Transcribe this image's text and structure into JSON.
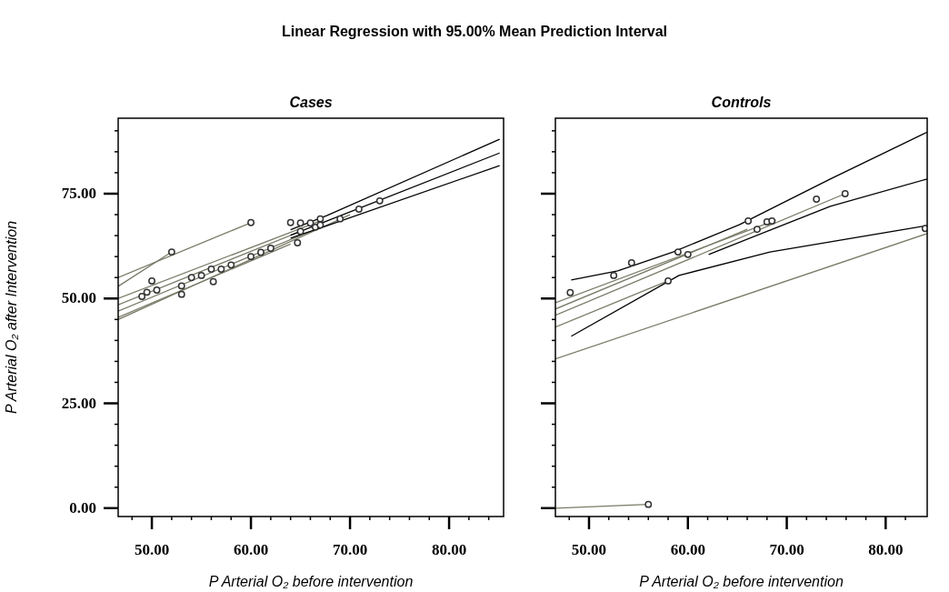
{
  "chart_data": [
    {
      "type": "line",
      "title": "Linear Regression with 95.00% Mean Prediction Interval",
      "subtitle": "Cases",
      "xlabel": "P Arterial O₂ before intervention",
      "ylabel": "P Arterial O₂ after Intervention",
      "xlim": [
        46.6,
        85.5
      ],
      "ylim": [
        -2,
        93
      ],
      "xticks": [
        {
          "value": 48,
          "label": null
        },
        {
          "value": 50,
          "label": "50.00"
        },
        {
          "value": 52,
          "label": null
        },
        {
          "value": 54,
          "label": null
        },
        {
          "value": 56,
          "label": null
        },
        {
          "value": 58,
          "label": null
        },
        {
          "value": 60,
          "label": "60.00"
        },
        {
          "value": 62,
          "label": null
        },
        {
          "value": 64,
          "label": null
        },
        {
          "value": 66,
          "label": null
        },
        {
          "value": 68,
          "label": null
        },
        {
          "value": 70,
          "label": "70.00"
        },
        {
          "value": 72,
          "label": null
        },
        {
          "value": 74,
          "label": null
        },
        {
          "value": 76,
          "label": null
        },
        {
          "value": 78,
          "label": null
        },
        {
          "value": 80,
          "label": "80.00"
        },
        {
          "value": 82,
          "label": null
        },
        {
          "value": 84,
          "label": null
        }
      ],
      "yticks": [
        {
          "value": 0,
          "label": "0.00"
        },
        {
          "value": 5,
          "label": null
        },
        {
          "value": 10,
          "label": null
        },
        {
          "value": 15,
          "label": null
        },
        {
          "value": 20,
          "label": null
        },
        {
          "value": 25,
          "label": "25.00"
        },
        {
          "value": 30,
          "label": null
        },
        {
          "value": 35,
          "label": null
        },
        {
          "value": 40,
          "label": null
        },
        {
          "value": 45,
          "label": null
        },
        {
          "value": 50,
          "label": "50.00"
        },
        {
          "value": 55,
          "label": null
        },
        {
          "value": 60,
          "label": null
        },
        {
          "value": 65,
          "label": null
        },
        {
          "value": 70,
          "label": null
        },
        {
          "value": 75,
          "label": "75.00"
        },
        {
          "value": 80,
          "label": null
        },
        {
          "value": 85,
          "label": null
        },
        {
          "value": 90,
          "label": null
        }
      ],
      "marker": "none",
      "series": [
        {
          "color": "#7a7a68",
          "x": [
            46.6,
            60
          ],
          "values": [
            55,
            68.1
          ]
        },
        {
          "color": "#7a7a68",
          "x": [
            46.6,
            52
          ],
          "values": [
            52.9,
            61.1
          ]
        },
        {
          "color": "#7a7a68",
          "x": [
            46.6,
            67
          ],
          "values": [
            50,
            68.5
          ]
        },
        {
          "color": "#7a7a68",
          "x": [
            46.6,
            65
          ],
          "values": [
            48.5,
            66
          ]
        },
        {
          "color": "#7a7a68",
          "x": [
            46.6,
            66
          ],
          "values": [
            47,
            66
          ]
        },
        {
          "color": "#7a7a68",
          "x": [
            46.6,
            64
          ],
          "values": [
            45.5,
            63
          ]
        },
        {
          "color": "#7a7a68",
          "x": [
            46.6,
            70
          ],
          "values": [
            45,
            70
          ]
        },
        {
          "color": "#000000",
          "x": [
            64,
            67.7,
            85.1
          ],
          "values": [
            66.4,
            69.8,
            88
          ]
        },
        {
          "color": "#000000",
          "x": [
            64,
            67.7,
            85.1
          ],
          "values": [
            65.1,
            68.5,
            84.7
          ]
        },
        {
          "color": "#000000",
          "x": [
            64,
            67.7,
            85.1
          ],
          "values": [
            64.4,
            67.4,
            81.7
          ]
        },
        {
          "type": "scatter",
          "color": "#333333",
          "marker": "circle",
          "x": [
            49,
            49.5,
            50,
            50.5,
            52,
            53,
            53,
            54,
            55,
            56.2,
            56,
            57,
            58,
            60,
            60,
            61,
            62,
            64,
            64.7,
            65,
            65,
            66,
            66.5,
            67,
            67,
            69,
            70.9,
            73
          ],
          "values": [
            50.5,
            51.5,
            54.2,
            52,
            61.1,
            51,
            53,
            55,
            55.5,
            54,
            57,
            57,
            58,
            68.1,
            60,
            61,
            62,
            68.1,
            63.3,
            66,
            68,
            68,
            67,
            69,
            67.5,
            69,
            71.3,
            73.3
          ]
        }
      ]
    },
    {
      "type": "line",
      "subtitle": "Controls",
      "xlabel": "P Arterial O₂ before intervention",
      "xlim": [
        46.6,
        84.2
      ],
      "ylim": [
        -2,
        93
      ],
      "tick_labels": "x",
      "xticks": [
        {
          "value": 48,
          "label": null
        },
        {
          "value": 50,
          "label": "50.00"
        },
        {
          "value": 52,
          "label": null
        },
        {
          "value": 54,
          "label": null
        },
        {
          "value": 56,
          "label": null
        },
        {
          "value": 58,
          "label": null
        },
        {
          "value": 60,
          "label": "60.00"
        },
        {
          "value": 62,
          "label": null
        },
        {
          "value": 64,
          "label": null
        },
        {
          "value": 66,
          "label": null
        },
        {
          "value": 68,
          "label": null
        },
        {
          "value": 70,
          "label": "70.00"
        },
        {
          "value": 72,
          "label": null
        },
        {
          "value": 74,
          "label": null
        },
        {
          "value": 76,
          "label": null
        },
        {
          "value": 78,
          "label": null
        },
        {
          "value": 80,
          "label": "80.00"
        },
        {
          "value": 82,
          "label": null
        }
      ],
      "yticks": [
        0,
        {
          "value": 5,
          "label": null
        },
        {
          "value": 10,
          "label": null
        },
        {
          "value": 15,
          "label": null
        },
        {
          "value": 20,
          "label": null
        },
        25,
        {
          "value": 30,
          "label": null
        },
        {
          "value": 35,
          "label": null
        },
        {
          "value": 40,
          "label": null
        },
        {
          "value": 45,
          "label": null
        },
        50,
        {
          "value": 55,
          "label": null
        },
        {
          "value": 60,
          "label": null
        },
        {
          "value": 65,
          "label": null
        },
        {
          "value": 70,
          "label": null
        },
        75,
        {
          "value": 80,
          "label": null
        },
        {
          "value": 85,
          "label": null
        },
        {
          "value": 90,
          "label": null
        }
      ],
      "marker": "none",
      "series": [
        {
          "color": "#7a7a68",
          "x": [
            46.6,
            84.2
          ],
          "values": [
            35.6,
            65.5
          ]
        },
        {
          "color": "#7a7a68",
          "x": [
            46.6,
            58.2
          ],
          "values": [
            43.2,
            54.4
          ]
        },
        {
          "color": "#7a7a68",
          "x": [
            46.6,
            75.9
          ],
          "values": [
            46,
            75
          ]
        },
        {
          "color": "#7a7a68",
          "x": [
            46.6,
            68.9
          ],
          "values": [
            49,
            68.7
          ]
        },
        {
          "color": "#7a7a68",
          "x": [
            46.6,
            66
          ],
          "values": [
            47.5,
            66.5
          ]
        },
        {
          "color": "#7a7a68",
          "x": [
            46.6,
            56
          ],
          "values": [
            0,
            0.9
          ]
        },
        {
          "color": "#000000",
          "x": [
            48.2,
            52.9,
            58.5,
            65.2,
            74.4,
            84.2
          ],
          "values": [
            54.4,
            56.6,
            61.1,
            67.6,
            78.5,
            89.7
          ]
        },
        {
          "color": "#000000",
          "x": [
            62.1,
            68.3,
            74.4,
            84.2
          ],
          "values": [
            60.5,
            66.3,
            72,
            78.5
          ]
        },
        {
          "color": "#000000",
          "x": [
            48.2,
            59.1,
            68.3,
            84.2
          ],
          "values": [
            41,
            55.5,
            61.1,
            67.4
          ]
        },
        {
          "type": "scatter",
          "color": "#333333",
          "marker": "circle",
          "x": [
            48.1,
            52.5,
            54.3,
            58,
            59,
            60,
            66.1,
            67,
            68,
            68.5,
            73,
            75.9,
            56,
            84
          ],
          "values": [
            51.4,
            55.5,
            58.5,
            54.2,
            61.1,
            60.5,
            68.5,
            66.5,
            68.3,
            68.5,
            73.7,
            75,
            0.9,
            66.7
          ]
        }
      ]
    }
  ]
}
